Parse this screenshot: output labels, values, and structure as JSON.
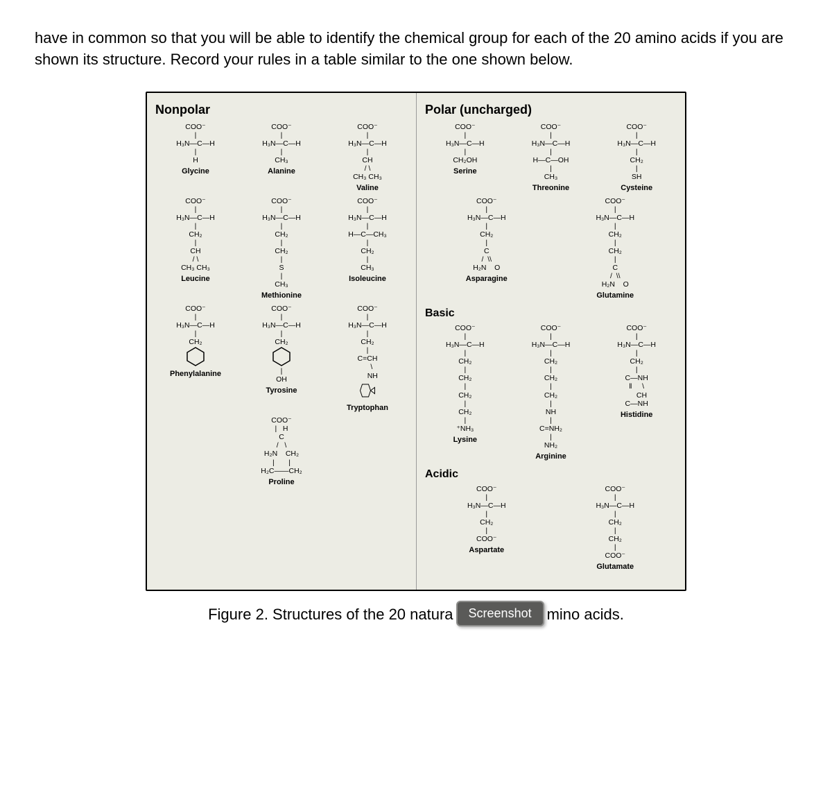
{
  "intro_text": "have in common so that you will be able to identify the chemical group for each of the 20 amino acids if you are shown its structure. Record your rules in a table similar to the one shown below.",
  "left": {
    "title": "Nonpolar",
    "groups": [
      [
        {
          "name": "Glycine",
          "lines": [
            "COO⁻",
            "|",
            "H₃N—C—H",
            "|",
            "H"
          ]
        },
        {
          "name": "Alanine",
          "lines": [
            "COO⁻",
            "|",
            "H₃N—C—H",
            "|",
            "CH₃"
          ]
        },
        {
          "name": "Valine",
          "lines": [
            "COO⁻",
            "|",
            "H₃N—C—H",
            "|",
            "CH",
            "/ \\",
            "CH₃ CH₃"
          ]
        }
      ],
      [
        {
          "name": "Leucine",
          "lines": [
            "COO⁻",
            "|",
            "H₃N—C—H",
            "|",
            "CH₂",
            "|",
            "CH",
            "/ \\",
            "CH₃ CH₃"
          ]
        },
        {
          "name": "Methionine",
          "lines": [
            "COO⁻",
            "|",
            "H₃N—C—H",
            "|",
            "CH₂",
            "|",
            "CH₂",
            "|",
            "S",
            "|",
            "CH₃"
          ]
        },
        {
          "name": "Isoleucine",
          "lines": [
            "COO⁻",
            "|",
            "H₃N—C—H",
            "|",
            "H—C—CH₃",
            "|",
            "CH₂",
            "|",
            "CH₃"
          ]
        }
      ],
      [
        {
          "name": "Phenylalanine",
          "lines": [
            "COO⁻",
            "|",
            "H₃N—C—H",
            "|",
            "CH₂"
          ],
          "ring": "benzene"
        },
        {
          "name": "Tyrosine",
          "lines": [
            "COO⁻",
            "|",
            "H₃N—C—H",
            "|",
            "CH₂"
          ],
          "ring": "benzene",
          "after": [
            "|",
            "OH"
          ]
        },
        {
          "name": "Tryptophan",
          "lines": [
            "COO⁻",
            "|",
            "H₃N—C—H",
            "|",
            "CH₂",
            "|",
            "C=CH",
            "    \\",
            "     NH"
          ],
          "ring": "indole"
        }
      ],
      [
        {
          "name": "Proline",
          "lines": [
            "COO⁻",
            "|   H",
            "C",
            "/   \\",
            "H₂N    CH₂",
            "|       |",
            "H₂C——CH₂"
          ]
        }
      ]
    ]
  },
  "right": {
    "title": "Polar (uncharged)",
    "polar": [
      [
        {
          "name": "Serine",
          "lines": [
            "COO⁻",
            "|",
            "H₃N—C—H",
            "|",
            "CH₂OH"
          ]
        },
        {
          "name": "Threonine",
          "lines": [
            "COO⁻",
            "|",
            "H₃N—C—H",
            "|",
            "H—C—OH",
            "|",
            "CH₃"
          ]
        },
        {
          "name": "Cysteine",
          "lines": [
            "COO⁻",
            "|",
            "H₃N—C—H",
            "|",
            "CH₂",
            "|",
            "SH"
          ]
        }
      ],
      [
        {
          "name": "Asparagine",
          "lines": [
            "COO⁻",
            "|",
            "H₃N—C—H",
            "|",
            "CH₂",
            "|",
            "C",
            "/  \\\\",
            "H₂N    O"
          ]
        },
        {
          "name": "Glutamine",
          "lines": [
            "COO⁻",
            "|",
            "H₃N—C—H",
            "|",
            "CH₂",
            "|",
            "CH₂",
            "|",
            "C",
            "/  \\\\",
            "H₂N    O"
          ]
        }
      ]
    ],
    "basic_title": "Basic",
    "basic": [
      {
        "name": "Lysine",
        "lines": [
          "COO⁻",
          "|",
          "H₃N—C—H",
          "|",
          "CH₂",
          "|",
          "CH₂",
          "|",
          "CH₂",
          "|",
          "CH₂",
          "|",
          "⁺NH₃"
        ]
      },
      {
        "name": "Arginine",
        "lines": [
          "COO⁻",
          "|",
          "H₃N—C—H",
          "|",
          "CH₂",
          "|",
          "CH₂",
          "|",
          "CH₂",
          "|",
          "NH",
          "|",
          "C=NH₂",
          "|",
          "NH₂"
        ]
      },
      {
        "name": "Histidine",
        "lines": [
          "COO⁻",
          "|",
          "H₃N—C—H",
          "|",
          "CH₂",
          "|",
          "C—NH",
          "‖     \\",
          "     CH",
          "C—NH"
        ]
      }
    ],
    "acidic_title": "Acidic",
    "acidic": [
      {
        "name": "Aspartate",
        "lines": [
          "COO⁻",
          "|",
          "H₃N—C—H",
          "|",
          "CH₂",
          "|",
          "COO⁻"
        ]
      },
      {
        "name": "Glutamate",
        "lines": [
          "COO⁻",
          "|",
          "H₃N—C—H",
          "|",
          "CH₂",
          "|",
          "CH₂",
          "|",
          "COO⁻"
        ]
      }
    ]
  },
  "caption_before": "Figure 2. Structures of the 20 natura",
  "caption_after": "mino acids.",
  "badge": "Screenshot",
  "colors": {
    "panel_bg": "#ecece4",
    "border": "#000000",
    "badge_bg": "#5a5a58",
    "badge_border": "#8d8d8b",
    "badge_text": "#ffffff"
  }
}
